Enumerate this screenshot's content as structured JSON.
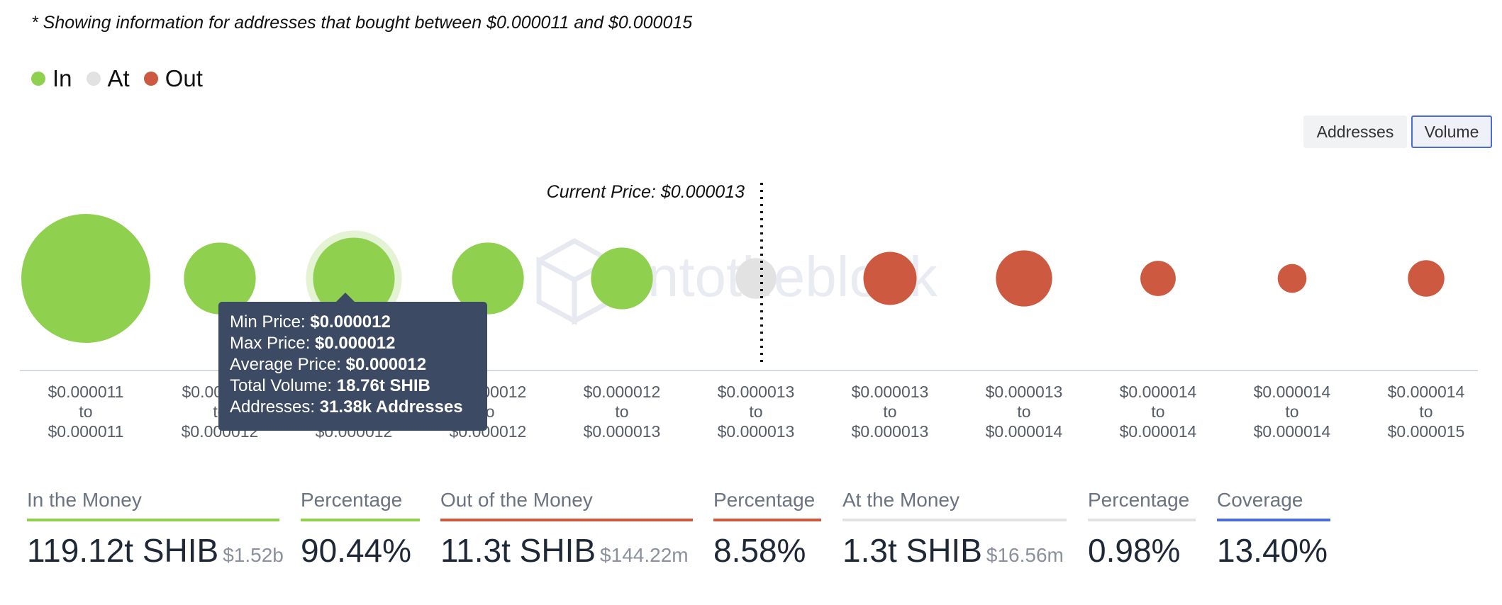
{
  "note": "* Showing information for addresses that bought between $0.000011 and $0.000015",
  "legend": [
    {
      "label": "In",
      "color": "#8fd14f"
    },
    {
      "label": "At",
      "color": "#e2e2e2"
    },
    {
      "label": "Out",
      "color": "#cd5a40"
    }
  ],
  "toggle": {
    "addresses_label": "Addresses",
    "volume_label": "Volume",
    "active": "Volume"
  },
  "chart_data": {
    "type": "scatter",
    "title": "",
    "current_price_label": "Current Price: $0.000013",
    "current_price_after_bucket": 5,
    "highlighted_bucket": 2,
    "watermark": "intotheblock",
    "buckets": [
      {
        "range": [
          "$0.000011",
          "to",
          "$0.000011"
        ],
        "status": "In",
        "relative_volume": 1.0
      },
      {
        "range": [
          "$0.000011",
          "to",
          "$0.000012"
        ],
        "status": "In",
        "relative_volume": 0.31
      },
      {
        "range": [
          "$0.000012",
          "to",
          "$0.000012"
        ],
        "status": "In",
        "relative_volume": 0.4
      },
      {
        "range": [
          "$0.000012",
          "to",
          "$0.000012"
        ],
        "status": "In",
        "relative_volume": 0.31
      },
      {
        "range": [
          "$0.000012",
          "to",
          "$0.000013"
        ],
        "status": "In",
        "relative_volume": 0.23
      },
      {
        "range": [
          "$0.000013",
          "to",
          "$0.000013"
        ],
        "status": "At",
        "relative_volume": 0.1
      },
      {
        "range": [
          "$0.000013",
          "to",
          "$0.000013"
        ],
        "status": "Out",
        "relative_volume": 0.17
      },
      {
        "range": [
          "$0.000013",
          "to",
          "$0.000014"
        ],
        "status": "Out",
        "relative_volume": 0.19
      },
      {
        "range": [
          "$0.000014",
          "to",
          "$0.000014"
        ],
        "status": "Out",
        "relative_volume": 0.075
      },
      {
        "range": [
          "$0.000014",
          "to",
          "$0.000014"
        ],
        "status": "Out",
        "relative_volume": 0.05
      },
      {
        "range": [
          "$0.000014",
          "to",
          "$0.000015"
        ],
        "status": "Out",
        "relative_volume": 0.08
      }
    ]
  },
  "tooltip": {
    "min_label": "Min Price:",
    "min_value": "$0.000012",
    "max_label": "Max Price:",
    "max_value": "$0.000012",
    "avg_label": "Average Price:",
    "avg_value": "$0.000012",
    "vol_label": "Total Volume:",
    "vol_value": "18.76t SHIB",
    "addr_label": "Addresses:",
    "addr_value": "31.38k Addresses"
  },
  "stats": {
    "in": {
      "label": "In the Money",
      "value": "119.12t SHIB",
      "usd": "$1.52b",
      "color": "#8fd14f"
    },
    "in_pct": {
      "label": "Percentage",
      "value": "90.44%",
      "color": "#8fd14f"
    },
    "out": {
      "label": "Out of the Money",
      "value": "11.3t SHIB",
      "usd": "$144.22m",
      "color": "#cd5a40"
    },
    "out_pct": {
      "label": "Percentage",
      "value": "8.58%",
      "color": "#cd5a40"
    },
    "at": {
      "label": "At the Money",
      "value": "1.3t SHIB",
      "usd": "$16.56m",
      "color": "#e2e2e2"
    },
    "at_pct": {
      "label": "Percentage",
      "value": "0.98%",
      "color": "#e2e2e2"
    },
    "coverage": {
      "label": "Coverage",
      "value": "13.40%",
      "color": "#4a6bd8"
    }
  }
}
